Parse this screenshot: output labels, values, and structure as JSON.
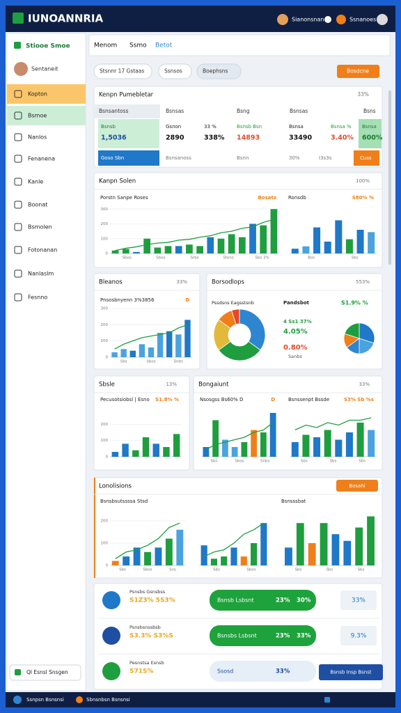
{
  "header": {
    "title": "IUNOANNRIA",
    "user": "Sianonsnan",
    "account": "Ssnanoes"
  },
  "sidebar": {
    "brand": "Stiooe Smoe",
    "user": "Sentaneit",
    "items": [
      "Kopton",
      "Bsmoe",
      "Nanlos",
      "Fenanena",
      "Kanle",
      "Boonat",
      "Bsmolen",
      "Fotonanan",
      "Nanlaslm",
      "Fesnno"
    ],
    "footer": "Ql Esnsl Snsgen"
  },
  "tabs": [
    "Menom",
    "Ssmo",
    "Betot"
  ],
  "filters": [
    "Stsnnr 17 Gstaas",
    "Ssnsos",
    "Boephsns"
  ],
  "action": "Bosdcne",
  "table": {
    "title": "Kenpn Pumebletar",
    "badge": "33%",
    "headers": [
      "Bsnsantoss",
      "Bsnsas",
      "Bsng",
      "Bsnsas",
      "Bsns"
    ],
    "labels": [
      "Bsnsb",
      "Gsnon",
      "33 %",
      "Bsnsb Bsn",
      "Bsnsa",
      "Bsnsa %",
      "Bsnsa"
    ],
    "values": [
      "1,5036",
      "2890",
      "338%",
      "14893",
      "33490",
      "3.40%",
      "600%"
    ],
    "footer": [
      "Goso Sbn",
      "Bsnsanoss",
      "Bsnn",
      "30%",
      "I3s3s",
      "Cuss"
    ]
  },
  "panels": [
    {
      "title": "Kanpn Solen",
      "badge": "100%"
    },
    {
      "title": "Bleanos",
      "badge": "33%"
    },
    {
      "title": "Borsodlops",
      "badge": "553%"
    },
    {
      "title": "Sbsle",
      "badge": "13%"
    },
    {
      "title": "Bongaiunt",
      "badge": "33%"
    },
    {
      "title": "Lonolisions",
      "badge": "Bosahl"
    }
  ],
  "charts": [
    {
      "title": "Porstn Sanpe Roses",
      "note": "Bosats",
      "ylim": [
        0,
        320
      ],
      "yticks": [
        0,
        100,
        200,
        300
      ],
      "values": [
        20,
        30,
        10,
        100,
        40,
        50,
        50,
        60,
        50,
        110,
        100,
        130,
        110,
        200,
        190,
        300
      ],
      "colors": [
        "#1e9e3e",
        "#1e9e3e",
        "#1f78c8",
        "#1e9e3e",
        "#1e9e3e",
        "#1e9e3e",
        "#1f78c8",
        "#1e9e3e",
        "#1e9e3e",
        "#1f78c8",
        "#1e9e3e",
        "#1e9e3e",
        "#1e9e3e",
        "#1f78c8",
        "#1e9e3e",
        "#1e9e3e"
      ],
      "line": [
        20,
        35,
        45,
        60,
        70,
        75,
        90,
        95,
        110,
        120,
        140,
        150,
        170,
        180,
        210,
        230
      ],
      "xlabels": [
        "Sbos",
        "Sbos",
        "Srbs",
        "Stons",
        "Sbs 3%"
      ]
    },
    {
      "title": "Ronsdb",
      "note": "S80% %",
      "ylim": [
        0,
        100
      ],
      "values": [
        10,
        15,
        55,
        25,
        70,
        30,
        50,
        45
      ],
      "colors": [
        "#1f78c8",
        "#4aa3df",
        "#1f78c8",
        "#1f78c8",
        "#1f78c8",
        "#1e9e3e",
        "#1f78c8",
        "#4aa3df"
      ],
      "xlabels": [
        "Bsn",
        "Sbs"
      ]
    },
    {
      "title": "Pnsosbnyenn 3%3856",
      "note": "D",
      "ylim": [
        0,
        300
      ],
      "yticks": [
        0,
        100,
        200,
        300
      ],
      "values": [
        30,
        50,
        40,
        80,
        60,
        150,
        160,
        140,
        230
      ],
      "colors": [
        "#4aa3df",
        "#4aa3df",
        "#1f78c8",
        "#4aa3df",
        "#4aa3df",
        "#4aa3df",
        "#1f78c8",
        "#4aa3df",
        "#1f78c8"
      ],
      "line": [
        50,
        80,
        100,
        120,
        130,
        140,
        150,
        180,
        200
      ],
      "xlabels": [
        "Sbs",
        "Sbos",
        "Snbs"
      ]
    },
    {
      "title": "Pecusotsiobsl | Esno",
      "note": "S1.8% %",
      "ylim": [
        0,
        300
      ],
      "yticks": [
        0,
        100,
        200
      ],
      "values": [
        30,
        80,
        40,
        120,
        80,
        60,
        140
      ],
      "colors": [
        "#1f78c8",
        "#1f78c8",
        "#1e9e3e",
        "#1e9e3e",
        "#1f78c8",
        "#1e9e3e",
        "#1e9e3e"
      ]
    },
    {
      "title": "Nsosgss Bs60% D",
      "note": "D",
      "ylim": [
        0,
        200
      ],
      "values": [
        40,
        150,
        70,
        40,
        60,
        110,
        100,
        180
      ],
      "colors": [
        "#1f78c8",
        "#1e9e3e",
        "#4aa3df",
        "#4aa3df",
        "#1e9e3e",
        "#f07f1a",
        "#1e9e3e",
        "#1f78c8"
      ],
      "line": [
        30,
        50,
        60,
        70,
        80,
        100,
        110,
        140
      ],
      "xlabels": [
        "Sbs",
        "Sbos",
        "Snbs"
      ]
    },
    {
      "title": "Bsnssenpt Bssde",
      "note": "S3% Sb %s",
      "ylim": [
        0,
        200
      ],
      "values": [
        60,
        90,
        80,
        110,
        70,
        100,
        140,
        110
      ],
      "colors": [
        "#1f78c8",
        "#1e9e3e",
        "#1f78c8",
        "#1e9e3e",
        "#1f78c8",
        "#1f78c8",
        "#1e9e3e",
        "#4aa3df"
      ],
      "line": [
        110,
        130,
        120,
        140,
        130,
        150,
        150,
        160
      ],
      "xlabels": [
        "Sbs",
        "Sbs",
        "Sbs"
      ]
    },
    {
      "title": "Bsnsbsutssssa Stsd",
      "ylim": [
        0,
        250
      ],
      "yticks": [
        0,
        100,
        200
      ],
      "values": [
        20,
        40,
        80,
        60,
        80,
        120,
        160
      ],
      "colors": [
        "#f07f1a",
        "#1f78c8",
        "#1f78c8",
        "#1e9e3e",
        "#1f78c8",
        "#1e9e3e",
        "#4aa3df"
      ],
      "line": [
        30,
        60,
        70,
        90,
        120,
        170,
        190
      ],
      "xlabels": [
        "Sbs",
        "Sbos",
        "Sns"
      ]
    },
    {
      "ylim": [
        0,
        250
      ],
      "values": [
        90,
        30,
        40,
        80,
        40,
        100,
        190
      ],
      "colors": [
        "#1f78c8",
        "#1e9e3e",
        "#1e9e3e",
        "#1f78c8",
        "#f07f1a",
        "#1e9e3e",
        "#1f78c8"
      ],
      "line": [
        40,
        60,
        70,
        100,
        140,
        160,
        190
      ],
      "xlabels": [
        "Sbs",
        "Sbos"
      ]
    },
    {
      "title": "Bsnsssbat",
      "ylim": [
        0,
        250
      ],
      "values": [
        80,
        190,
        100,
        190,
        140,
        110,
        170,
        220
      ],
      "colors": [
        "#1f78c8",
        "#1e9e3e",
        "#f07f1a",
        "#1e9e3e",
        "#1f78c8",
        "#1f78c8",
        "#1e9e3e",
        "#1e9e3e"
      ],
      "xlabels": [
        "Sbs",
        "Sbs",
        "Sbs"
      ]
    }
  ],
  "donut": {
    "title": "Pssdsns Eagsstsnb",
    "values": [
      35,
      30,
      20,
      10,
      5
    ],
    "colors": [
      "#2f86d0",
      "#1e9e3e",
      "#e2b93b",
      "#f07f1a",
      "#e04a2a"
    ]
  },
  "pie": {
    "values": [
      30,
      20,
      15,
      15,
      20
    ],
    "colors": [
      "#1f78c8",
      "#4aa3df",
      "#2f86d0",
      "#f07f1a",
      "#1e9e3e"
    ]
  },
  "stats": [
    "Pandsbot",
    "S1.9% %",
    "4 Ss1 37%",
    "4.05%",
    "0.80%",
    "Sanbs"
  ],
  "list": [
    {
      "title": "Psnsbs Gsnsbss",
      "value": "S1Z3% 5S3%",
      "pill": "Bsnsb Lsbsnt",
      "a": "23%",
      "b": "30%",
      "right": "33%"
    },
    {
      "title": "Psnsbsnssbsb",
      "value": "S3.3% S3%S",
      "pill": "Bsnsbs Lsbsnt",
      "a": "23%",
      "b": "33%",
      "right": "9.3%"
    },
    {
      "title": "Pesnstsa Esnsb",
      "value": "S71S%",
      "pill": "Ssosd",
      "a": "33%",
      "b": "",
      "right": "Bsnsb Insp Bsnst"
    }
  ],
  "taskbar": [
    "Ssnpsn Bsnsnsi",
    "Sbnsnbsn Bsnsnsi"
  ]
}
